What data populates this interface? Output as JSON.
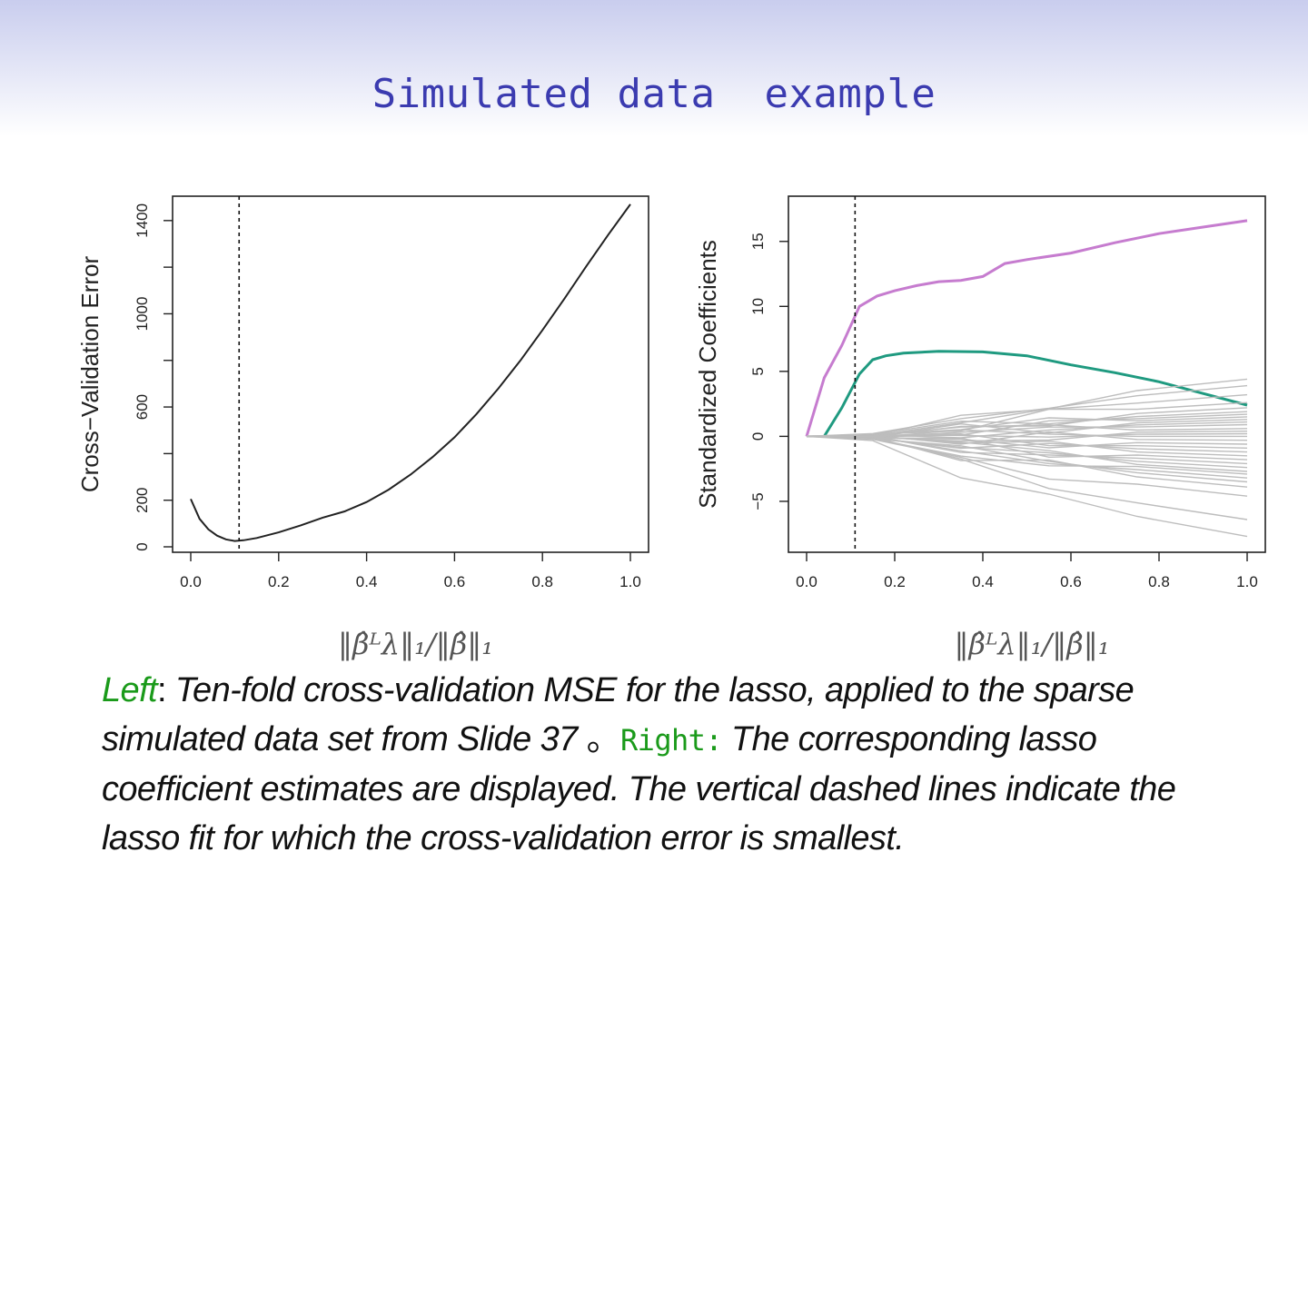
{
  "slide": {
    "title": "Simulated data  example"
  },
  "caption": {
    "left_label": "Left",
    "colon1": ":",
    "part1": " Ten-fold cross-validation MSE for the lasso, applied to the sparse simulated data set from Slide 37 ",
    "period": "。",
    "right_label": "Right:",
    "part2": " The corresponding lasso coefficient estimates are displayed. The vertical dashed lines indicate the lasso fit for which the cross-validation error is smallest."
  },
  "chart_data": [
    {
      "type": "line",
      "ylabel": "Cross−Validation Error",
      "xlabel": "‖β̂ᴸλ‖₁/‖β̂‖₁",
      "xlim": [
        0,
        1
      ],
      "ylim": [
        0,
        1450
      ],
      "xticks": [
        "0.0",
        "0.2",
        "0.4",
        "0.6",
        "0.8",
        "1.0"
      ],
      "yticks": [
        "0",
        "200",
        "600",
        "1000",
        "1400"
      ],
      "vline": 0.11,
      "series": [
        {
          "color": "#222222",
          "x": [
            0.0,
            0.02,
            0.04,
            0.06,
            0.08,
            0.1,
            0.12,
            0.15,
            0.2,
            0.25,
            0.3,
            0.35,
            0.4,
            0.45,
            0.5,
            0.55,
            0.6,
            0.65,
            0.7,
            0.75,
            0.8,
            0.85,
            0.9,
            0.95,
            1.0
          ],
          "y": [
            205,
            120,
            75,
            48,
            32,
            25,
            28,
            38,
            62,
            92,
            125,
            152,
            192,
            245,
            310,
            385,
            470,
            570,
            680,
            800,
            930,
            1065,
            1205,
            1340,
            1470
          ]
        }
      ]
    },
    {
      "type": "line",
      "ylabel": "Standardized Coefficients",
      "xlabel": "‖β̂ᴸλ‖₁/‖β̂‖₁",
      "xlim": [
        0,
        1
      ],
      "ylim": [
        -8.5,
        17.5
      ],
      "xticks": [
        "0.0",
        "0.2",
        "0.4",
        "0.6",
        "0.8",
        "1.0"
      ],
      "yticks": [
        "−5",
        "0",
        "5",
        "10",
        "15"
      ],
      "vline": 0.11,
      "series": [
        {
          "color": "#c67ccf",
          "x": [
            0.0,
            0.04,
            0.08,
            0.12,
            0.16,
            0.2,
            0.25,
            0.3,
            0.35,
            0.4,
            0.45,
            0.5,
            0.6,
            0.7,
            0.8,
            0.9,
            1.0
          ],
          "y": [
            0,
            4.5,
            7.0,
            10.0,
            10.8,
            11.2,
            11.6,
            11.9,
            12.0,
            12.3,
            13.3,
            13.6,
            14.1,
            14.9,
            15.6,
            16.1,
            16.6
          ]
        },
        {
          "color": "#1f9a80",
          "x": [
            0.04,
            0.08,
            0.12,
            0.15,
            0.18,
            0.22,
            0.3,
            0.4,
            0.5,
            0.6,
            0.7,
            0.8,
            0.9,
            1.0
          ],
          "y": [
            0,
            2.2,
            4.8,
            5.9,
            6.2,
            6.4,
            6.55,
            6.5,
            6.2,
            5.5,
            4.9,
            4.2,
            3.3,
            2.4
          ],
          "width": 3
        },
        {
          "color": "#bdbdbd",
          "group": "others",
          "x": [
            0.0,
            0.15,
            1.0
          ],
          "finals": [
            4.4,
            3.9,
            3.2,
            2.6,
            2.2,
            1.9,
            1.7,
            1.5,
            1.3,
            1.1,
            0.9,
            0.6,
            0.4,
            0.2,
            0.0,
            -0.3,
            -0.6,
            -0.9,
            -1.2,
            -1.5,
            -1.8,
            -2.1,
            -2.4,
            -2.7,
            -2.9,
            -3.2,
            -3.5,
            -3.9,
            -4.6,
            -6.4,
            -7.7
          ]
        }
      ]
    }
  ]
}
